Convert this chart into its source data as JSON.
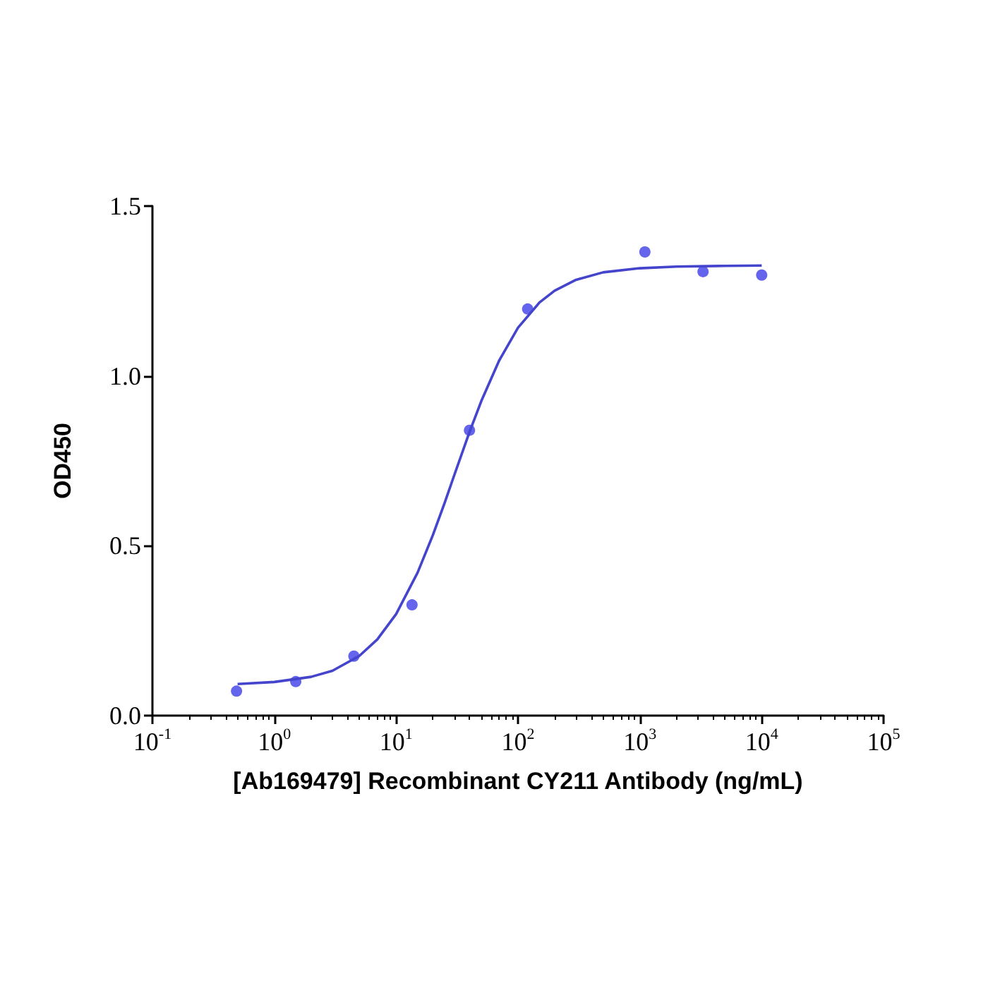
{
  "chart_data": {
    "type": "scatter",
    "xlabel": "[Ab169479] Recombinant CY211 Antibody (ng/mL)",
    "ylabel": "OD450",
    "log": "x",
    "marker": "circle",
    "grid": false,
    "xlim": [
      0.1,
      100000
    ],
    "ylim": [
      0,
      1.5
    ],
    "xticks": [
      {
        "value": 0.1,
        "label": "10$^{-1}$"
      },
      {
        "value": 1,
        "label": "10$^{0}$"
      },
      {
        "value": 10,
        "label": "10$^{1}$"
      },
      {
        "value": 100,
        "label": "10$^{2}$"
      },
      {
        "value": 1000,
        "label": "10$^{3}$"
      },
      {
        "value": 10000,
        "label": "10$^{4}$"
      },
      {
        "value": 100000,
        "label": "10$^{5}$"
      }
    ],
    "yticks": [
      {
        "value": 0,
        "label": "0.0"
      },
      {
        "value": 0.5,
        "label": "0.5"
      },
      {
        "value": 1,
        "label": "1.0"
      },
      {
        "value": 1.5,
        "label": "1.5"
      }
    ],
    "series": [
      {
        "color": "#3d3de8",
        "x": [
          0.49,
          1.5,
          4.5,
          13.5,
          40,
          120,
          1100,
          3300,
          10000
        ],
        "values": [
          0.072,
          0.1,
          0.175,
          0.326,
          0.84,
          1.197,
          1.365,
          1.307,
          1.297
        ]
      },
      {
        "type": "line",
        "color": "#4444cc",
        "marker": "none",
        "line_style": "solid",
        "x": [
          0.5,
          1,
          2,
          3,
          5,
          7,
          10,
          15,
          20,
          25,
          30,
          40,
          50,
          70,
          100,
          150,
          200,
          300,
          500,
          1000,
          2000,
          5000,
          10000
        ],
        "values": [
          0.093,
          0.099,
          0.114,
          0.132,
          0.176,
          0.224,
          0.299,
          0.421,
          0.531,
          0.626,
          0.708,
          0.835,
          0.926,
          1.045,
          1.142,
          1.216,
          1.251,
          1.283,
          1.305,
          1.317,
          1.322,
          1.324,
          1.325
        ]
      }
    ]
  }
}
